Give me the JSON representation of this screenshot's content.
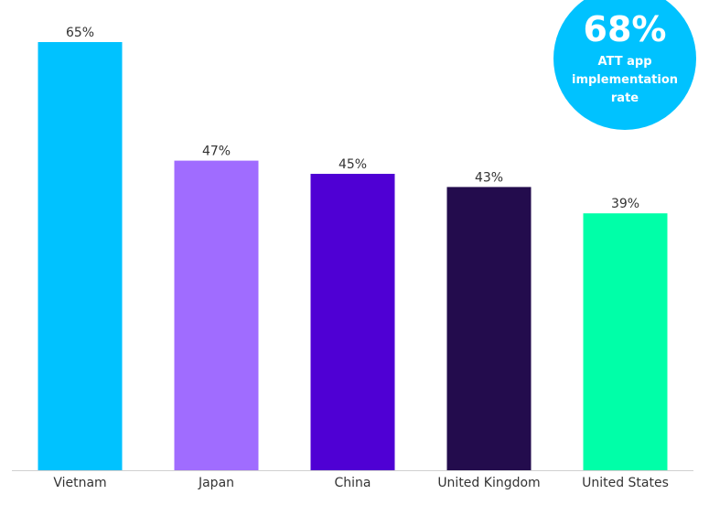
{
  "chart_data": {
    "type": "bar",
    "categories": [
      "Vietnam",
      "Japan",
      "China",
      "United Kingdom",
      "United States"
    ],
    "values": [
      65,
      47,
      45,
      43,
      39
    ],
    "value_labels": [
      "65%",
      "47%",
      "45%",
      "43%",
      "39%"
    ],
    "colors": [
      "#00c2ff",
      "#a06cff",
      "#4f00d4",
      "#230c4d",
      "#00ffa8"
    ],
    "badge": {
      "headline": "68%",
      "text": "ATT app implementation rate",
      "color": "#00c2ff"
    }
  }
}
